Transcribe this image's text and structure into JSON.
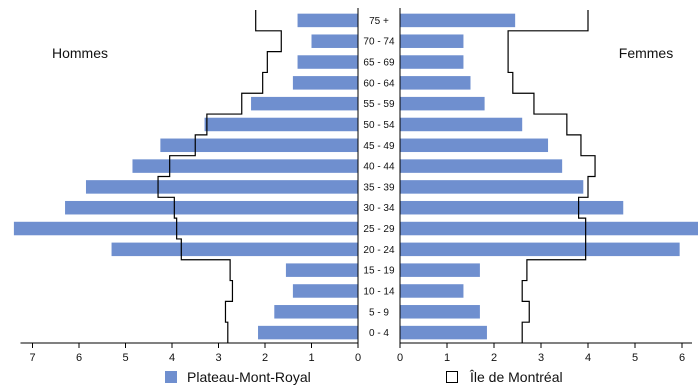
{
  "chart_data": {
    "type": "bar",
    "orientation": "horizontal",
    "layout": "population-pyramid",
    "units": "percent",
    "categories": [
      "0 - 4",
      "5 - 9",
      "10 - 14",
      "15 - 19",
      "20 - 24",
      "25 - 29",
      "30 - 34",
      "35 - 39",
      "40 - 44",
      "45 - 49",
      "50 - 54",
      "55 - 59",
      "60 - 64",
      "65 - 69",
      "70 - 74",
      "75 +"
    ],
    "left_label": "Hommes",
    "right_label": "Femmes",
    "series": [
      {
        "name": "Plateau-Mont-Royal",
        "display": "bars",
        "color": "#6f8fcf",
        "hommes": [
          2.15,
          1.8,
          1.4,
          1.55,
          5.3,
          7.4,
          6.3,
          5.85,
          4.85,
          4.25,
          3.3,
          2.3,
          1.4,
          1.3,
          1.0,
          1.3
        ],
        "femmes": [
          1.85,
          1.7,
          1.35,
          1.7,
          5.95,
          6.35,
          4.75,
          3.9,
          3.45,
          3.15,
          2.6,
          1.8,
          1.5,
          1.35,
          1.35,
          2.45
        ]
      },
      {
        "name": "Île de Montréal",
        "display": "outline",
        "color": "#000000",
        "hommes": [
          2.8,
          2.85,
          2.7,
          2.75,
          3.8,
          3.9,
          3.95,
          4.3,
          4.05,
          3.5,
          3.25,
          2.5,
          2.05,
          1.95,
          1.65,
          2.2
        ],
        "femmes": [
          2.6,
          2.75,
          2.6,
          2.7,
          3.95,
          3.95,
          3.8,
          4.0,
          4.15,
          3.85,
          3.55,
          2.85,
          2.4,
          2.3,
          2.3,
          4.0
        ]
      }
    ],
    "left_axis": {
      "ticks": [
        0,
        1,
        2,
        3,
        4,
        5,
        6,
        7
      ],
      "reversed": true
    },
    "right_axis": {
      "ticks": [
        0,
        1,
        2,
        3,
        4,
        5,
        6
      ]
    },
    "legend": {
      "placement": "bottom",
      "items": [
        "Plateau-Mont-Royal",
        "Île de Montréal"
      ]
    },
    "grid": false
  }
}
